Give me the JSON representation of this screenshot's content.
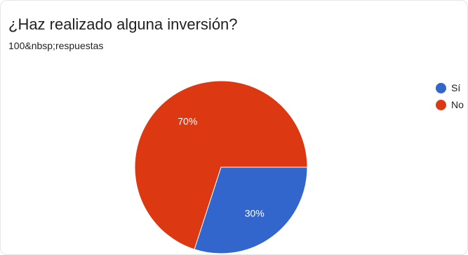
{
  "header": {
    "title": "¿Haz realizado alguna inversión?",
    "subtitle": "100&nbsp;respuestas"
  },
  "chart_data": {
    "type": "pie",
    "categories": [
      "Sí",
      "No"
    ],
    "values": [
      30,
      70
    ],
    "data_labels": [
      "30%",
      "70%"
    ],
    "colors": [
      "#3366cc",
      "#dc3912"
    ],
    "legend_position": "right"
  }
}
